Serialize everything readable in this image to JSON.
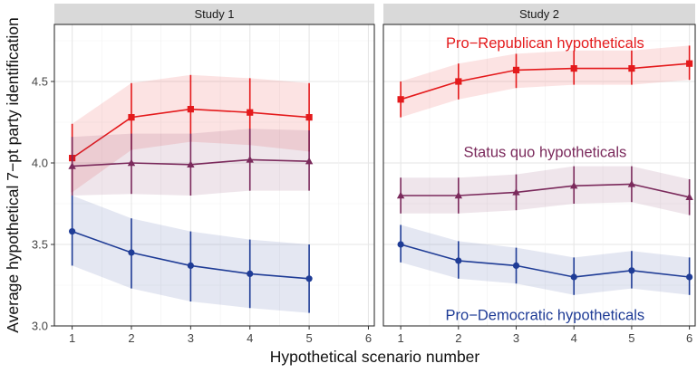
{
  "chart_data": {
    "type": "line",
    "ylabel": "Average hypothetical 7−pt party identification",
    "xlabel": "Hypothetical scenario number",
    "ylim": [
      3.0,
      4.85
    ],
    "xlim": [
      0.7,
      6.1
    ],
    "yticks": [
      3.0,
      3.5,
      4.0,
      4.5
    ],
    "ytick_labels": [
      "3.0",
      "3.5",
      "4.0",
      "4.5"
    ],
    "xticks": [
      1,
      2,
      3,
      4,
      5,
      6
    ],
    "xtick_labels": [
      "1",
      "2",
      "3",
      "4",
      "5",
      "6"
    ],
    "grid": true,
    "panels": [
      {
        "title": "Study 1",
        "series": [
          {
            "name": "Pro−Republican hypotheticals",
            "color": "#e41a1c",
            "marker": "square",
            "x": [
              1,
              2,
              3,
              4,
              5
            ],
            "values": [
              4.03,
              4.28,
              4.33,
              4.31,
              4.28
            ],
            "err_low": [
              3.82,
              4.08,
              4.13,
              4.11,
              4.07
            ],
            "err_high": [
              4.24,
              4.49,
              4.54,
              4.52,
              4.49
            ],
            "band_low": [
              3.82,
              4.08,
              4.13,
              4.11,
              4.07
            ],
            "band_high": [
              4.24,
              4.49,
              4.54,
              4.52,
              4.49
            ]
          },
          {
            "name": "Status quo hypotheticals",
            "color": "#7b2a5c",
            "marker": "triangle",
            "x": [
              1,
              2,
              3,
              4,
              5
            ],
            "values": [
              3.98,
              4.0,
              3.99,
              4.02,
              4.01
            ],
            "err_low": [
              3.8,
              3.81,
              3.8,
              3.83,
              3.83
            ],
            "err_high": [
              4.16,
              4.18,
              4.18,
              4.21,
              4.2
            ],
            "band_low": [
              3.8,
              3.81,
              3.8,
              3.83,
              3.83
            ],
            "band_high": [
              4.16,
              4.18,
              4.18,
              4.21,
              4.2
            ]
          },
          {
            "name": "Pro−Democratic hypotheticals",
            "color": "#1f3c96",
            "marker": "circle",
            "x": [
              1,
              2,
              3,
              4,
              5
            ],
            "values": [
              3.58,
              3.45,
              3.37,
              3.32,
              3.29
            ],
            "err_low": [
              3.37,
              3.23,
              3.15,
              3.11,
              3.08
            ],
            "err_high": [
              3.8,
              3.66,
              3.58,
              3.53,
              3.5
            ],
            "band_low": [
              3.37,
              3.23,
              3.15,
              3.11,
              3.08
            ],
            "band_high": [
              3.8,
              3.66,
              3.58,
              3.53,
              3.5
            ]
          }
        ]
      },
      {
        "title": "Study 2",
        "series": [
          {
            "name": "Pro−Republican hypotheticals",
            "color": "#e41a1c",
            "marker": "square",
            "x": [
              1,
              2,
              3,
              4,
              5,
              6
            ],
            "values": [
              4.39,
              4.5,
              4.57,
              4.58,
              4.58,
              4.61
            ],
            "err_low": [
              4.28,
              4.39,
              4.46,
              4.48,
              4.48,
              4.51
            ],
            "err_high": [
              4.5,
              4.61,
              4.67,
              4.69,
              4.69,
              4.72
            ],
            "band_low": [
              4.28,
              4.39,
              4.46,
              4.48,
              4.48,
              4.51
            ],
            "band_high": [
              4.5,
              4.61,
              4.67,
              4.69,
              4.69,
              4.72
            ]
          },
          {
            "name": "Status quo hypotheticals",
            "color": "#7b2a5c",
            "marker": "triangle",
            "x": [
              1,
              2,
              3,
              4,
              5,
              6
            ],
            "values": [
              3.8,
              3.8,
              3.82,
              3.86,
              3.87,
              3.79
            ],
            "err_low": [
              3.69,
              3.69,
              3.71,
              3.75,
              3.76,
              3.68
            ],
            "err_high": [
              3.91,
              3.91,
              3.93,
              3.98,
              3.98,
              3.9
            ],
            "band_low": [
              3.69,
              3.69,
              3.71,
              3.75,
              3.76,
              3.68
            ],
            "band_high": [
              3.91,
              3.91,
              3.93,
              3.98,
              3.98,
              3.9
            ]
          },
          {
            "name": "Pro−Democratic hypotheticals",
            "color": "#1f3c96",
            "marker": "circle",
            "x": [
              1,
              2,
              3,
              4,
              5,
              6
            ],
            "values": [
              3.5,
              3.4,
              3.37,
              3.3,
              3.34,
              3.3
            ],
            "err_low": [
              3.39,
              3.29,
              3.26,
              3.19,
              3.23,
              3.19
            ],
            "err_high": [
              3.62,
              3.52,
              3.48,
              3.42,
              3.46,
              3.42
            ],
            "band_low": [
              3.39,
              3.29,
              3.26,
              3.19,
              3.23,
              3.19
            ],
            "band_high": [
              3.62,
              3.52,
              3.48,
              3.42,
              3.46,
              3.42
            ]
          }
        ]
      }
    ],
    "annotations": [
      {
        "panel": 1,
        "series": "Pro−Republican hypotheticals",
        "text": "Pro−Republican hypotheticals",
        "color": "#e41a1c",
        "x": 3.5,
        "y": 4.74
      },
      {
        "panel": 1,
        "series": "Status quo hypotheticals",
        "text": "Status quo hypotheticals",
        "color": "#7b2a5c",
        "x": 3.5,
        "y": 4.07
      },
      {
        "panel": 1,
        "series": "Pro−Democratic hypotheticals",
        "text": "Pro−Democratic hypotheticals",
        "color": "#1f3c96",
        "x": 3.5,
        "y": 3.07
      }
    ]
  }
}
